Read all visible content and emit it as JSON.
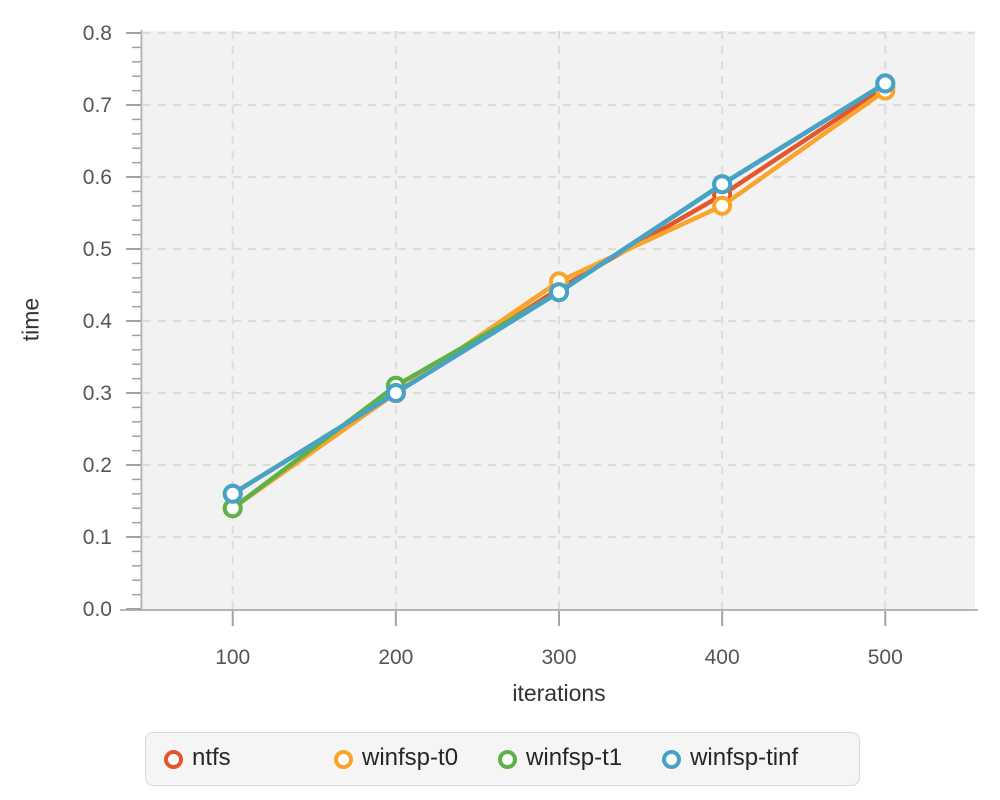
{
  "chart_data": {
    "type": "line",
    "title": "",
    "xlabel": "iterations",
    "ylabel": "time",
    "x": [
      100,
      200,
      300,
      400,
      500
    ],
    "series": [
      {
        "name": "ntfs",
        "color": "#e4572e",
        "values": [
          0.16,
          0.3,
          0.445,
          0.575,
          0.725
        ]
      },
      {
        "name": "winfsp-t0",
        "color": "#f9a42d",
        "values": [
          0.14,
          0.3,
          0.455,
          0.56,
          0.72
        ]
      },
      {
        "name": "winfsp-t1",
        "color": "#5cb248",
        "values": [
          0.14,
          0.31,
          0.44,
          0.59,
          0.73
        ]
      },
      {
        "name": "winfsp-tinf",
        "color": "#46a2c6",
        "values": [
          0.16,
          0.3,
          0.44,
          0.59,
          0.73
        ]
      }
    ],
    "xlim": [
      45,
      555
    ],
    "ylim": [
      0.0,
      0.8
    ],
    "x_ticks": [
      100,
      200,
      300,
      400,
      500
    ],
    "y_ticks": [
      0.0,
      0.1,
      0.2,
      0.3,
      0.4,
      0.5,
      0.6,
      0.7,
      0.8
    ],
    "y_minor_step": 0.02,
    "grid": "dashed",
    "legend_position": "bottom",
    "marker": "open-circle",
    "colors": {
      "plot_bg": "#f2f2f2",
      "grid": "#dcdcdc",
      "axis_line": "#b5b5b5",
      "tick": "#a3a3a3",
      "tick_label": "#555555",
      "axis_title": "#333333",
      "legend_text": "#262626",
      "marker_fill": "#ffffff"
    }
  }
}
